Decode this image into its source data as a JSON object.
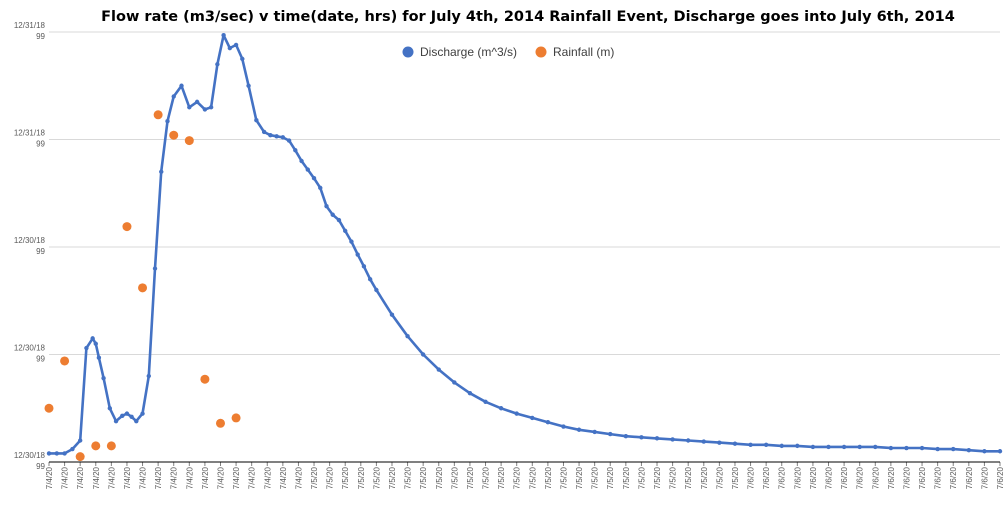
{
  "chart_data": {
    "type": "scatter",
    "title": "Flow rate (m3/sec) v time(date, hrs) for July 4th, 2014  Rainfall Event, Discharge goes into July 6th, 2014",
    "xlabel": "",
    "ylabel": "",
    "y_tick_labels": [
      {
        "date": "12/30/18",
        "suffix": "99"
      },
      {
        "date": "12/30/18",
        "suffix": "99"
      },
      {
        "date": "12/30/18",
        "suffix": "99"
      },
      {
        "date": "12/31/18",
        "suffix": "99"
      },
      {
        "date": "12/31/18",
        "suffix": "99"
      }
    ],
    "x_tick_labels": [
      "7/4/20",
      "7/4/20",
      "7/4/20",
      "7/4/20",
      "7/4/20",
      "7/4/20",
      "7/4/20",
      "7/4/20",
      "7/4/20",
      "7/4/20",
      "7/4/20",
      "7/4/20",
      "7/4/20",
      "7/4/20",
      "7/4/20",
      "7/4/20",
      "7/4/20",
      "7/5/20",
      "7/5/20",
      "7/5/20",
      "7/5/20",
      "7/5/20",
      "7/5/20",
      "7/5/20",
      "7/5/20",
      "7/5/20",
      "7/5/20",
      "7/5/20",
      "7/5/20",
      "7/5/20",
      "7/5/20",
      "7/5/20",
      "7/5/20",
      "7/5/20",
      "7/5/20",
      "7/5/20",
      "7/5/20",
      "7/5/20",
      "7/5/20",
      "7/5/20",
      "7/5/20",
      "7/5/20",
      "7/5/20",
      "7/5/20",
      "7/5/20",
      "7/6/20",
      "7/6/20",
      "7/6/20",
      "7/6/20",
      "7/6/20",
      "7/6/20",
      "7/6/20",
      "7/6/20",
      "7/6/20",
      "7/6/20",
      "7/6/20",
      "7/6/20",
      "7/6/20",
      "7/6/20",
      "7/6/20",
      "7/6/20",
      "7/6/20"
    ],
    "xlim": [
      0,
      61
    ],
    "ylim": [
      0,
      4
    ],
    "grid": true,
    "legend_position": "top-center",
    "series": [
      {
        "name": "Discharge (m^3/s)",
        "color": "#4472c4",
        "x": [
          0,
          0.5,
          1,
          1.5,
          2,
          2.4,
          2.8,
          3.0,
          3.2,
          3.5,
          3.9,
          4.3,
          4.7,
          5.0,
          5.3,
          5.6,
          6.0,
          6.4,
          6.8,
          7.2,
          7.6,
          8.0,
          8.5,
          9.0,
          9.5,
          10.0,
          10.4,
          10.8,
          11.2,
          11.6,
          12.0,
          12.4,
          12.8,
          13.3,
          13.8,
          14.2,
          14.6,
          15.0,
          15.4,
          15.8,
          16.2,
          16.6,
          17.0,
          17.4,
          17.8,
          18.2,
          18.6,
          19.0,
          19.4,
          19.8,
          20.2,
          20.6,
          21.0,
          22.0,
          23.0,
          24.0,
          25.0,
          26.0,
          27.0,
          28.0,
          29.0,
          30.0,
          31.0,
          32.0,
          33.0,
          34.0,
          35.0,
          36.0,
          37.0,
          38.0,
          39.0,
          40.0,
          41.0,
          42.0,
          43.0,
          44.0,
          45.0,
          46.0,
          47.0,
          48.0,
          49.0,
          50.0,
          51.0,
          52.0,
          53.0,
          54.0,
          55.0,
          56.0,
          57.0,
          58.0,
          59.0,
          60.0,
          61.0
        ],
        "y": [
          0.08,
          0.08,
          0.08,
          0.12,
          0.2,
          1.06,
          1.15,
          1.1,
          0.97,
          0.78,
          0.5,
          0.38,
          0.43,
          0.45,
          0.42,
          0.38,
          0.45,
          0.8,
          1.8,
          2.7,
          3.17,
          3.4,
          3.5,
          3.3,
          3.35,
          3.28,
          3.3,
          3.7,
          3.97,
          3.85,
          3.88,
          3.75,
          3.5,
          3.18,
          3.07,
          3.04,
          3.03,
          3.02,
          2.99,
          2.9,
          2.8,
          2.72,
          2.64,
          2.55,
          2.38,
          2.3,
          2.25,
          2.15,
          2.05,
          1.93,
          1.82,
          1.7,
          1.6,
          1.37,
          1.17,
          1.0,
          0.86,
          0.74,
          0.64,
          0.56,
          0.5,
          0.45,
          0.41,
          0.37,
          0.33,
          0.3,
          0.28,
          0.26,
          0.24,
          0.23,
          0.22,
          0.21,
          0.2,
          0.19,
          0.18,
          0.17,
          0.16,
          0.16,
          0.15,
          0.15,
          0.14,
          0.14,
          0.14,
          0.14,
          0.14,
          0.13,
          0.13,
          0.13,
          0.12,
          0.12,
          0.11,
          0.1,
          0.1
        ]
      },
      {
        "name": "Rainfall (m)",
        "color": "#ed7d31",
        "x": [
          0,
          1,
          2,
          3,
          4,
          5,
          6,
          7,
          8,
          9,
          10,
          11,
          12
        ],
        "y": [
          0.5,
          0.94,
          0.05,
          0.15,
          0.15,
          2.19,
          1.62,
          3.23,
          3.04,
          2.99,
          0.77,
          0.36,
          0.41
        ]
      }
    ]
  }
}
